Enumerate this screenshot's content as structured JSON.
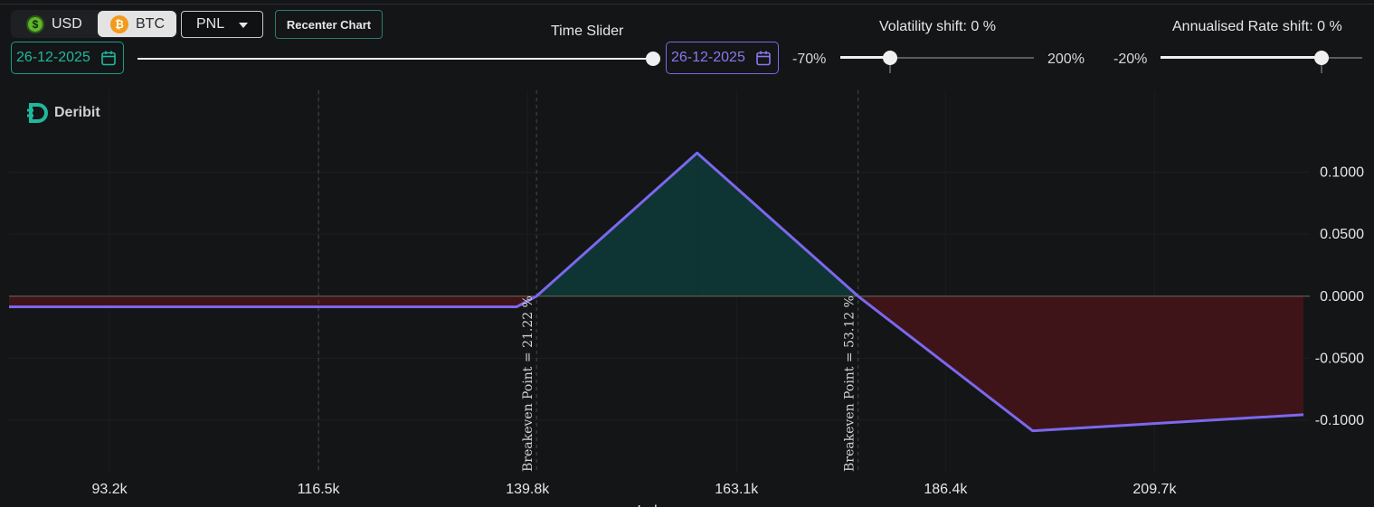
{
  "currency_toggle": {
    "usd": {
      "label": "USD",
      "icon": "dollar-coin-icon",
      "glyph": "$"
    },
    "btc": {
      "label": "BTC",
      "icon": "bitcoin-coin-icon",
      "glyph": "₿",
      "selected": true
    }
  },
  "mode_select": {
    "value": "PNL"
  },
  "recenter_button": {
    "label": "Recenter Chart"
  },
  "time_slider": {
    "title": "Time Slider",
    "start_date": "26-12-2025",
    "end_date": "26-12-2025",
    "position": 1.0
  },
  "volatility_slider": {
    "title": "Volatility shift: 0 %",
    "min_label": "-70%",
    "max_label": "200%",
    "value": 0,
    "min": -70,
    "max": 200
  },
  "rate_slider": {
    "title": "Annualised Rate shift: 0 %",
    "min_label": "-20%",
    "value": 0,
    "min": -20,
    "max": 5
  },
  "logo": {
    "text": "Deribit"
  },
  "colors": {
    "accent_teal": "#1fb89f",
    "accent_purple": "#7b67e8",
    "profit_fill": "#0f3434",
    "loss_fill": "#3e1418",
    "pnl_line": "#7b68ee"
  },
  "chart_data": {
    "type": "area",
    "xlabel": "Index",
    "ylabel": "",
    "x_ticks": [
      "93.2k",
      "116.5k",
      "139.8k",
      "163.1k",
      "186.4k",
      "209.7k"
    ],
    "x_tick_values": [
      93200,
      116500,
      139800,
      163100,
      186400,
      209700
    ],
    "y_ticks": [
      "0.1000",
      "0.0500",
      "0.0000",
      "-0.0500",
      "-0.1000"
    ],
    "y_tick_values": [
      0.1,
      0.05,
      0.0,
      -0.05,
      -0.1
    ],
    "xlim": [
      82000,
      227000
    ],
    "ylim": [
      -0.143,
      0.166
    ],
    "series": [
      {
        "points": [
          [
            82000,
            -0.0085
          ],
          [
            138600,
            -0.0085
          ],
          [
            140800,
            0.0
          ],
          [
            158700,
            0.1155
          ],
          [
            176650,
            0.0
          ],
          [
            196100,
            -0.1085
          ],
          [
            226300,
            -0.0955
          ]
        ]
      }
    ],
    "breakevens": [
      {
        "x": 140800,
        "label": "Breakeven Point = 21.22 %"
      },
      {
        "x": 176650,
        "label": "Breakeven Point = 53.12 %"
      }
    ],
    "vertical_guides": [
      116500,
      140800,
      176650
    ],
    "grid": true
  }
}
